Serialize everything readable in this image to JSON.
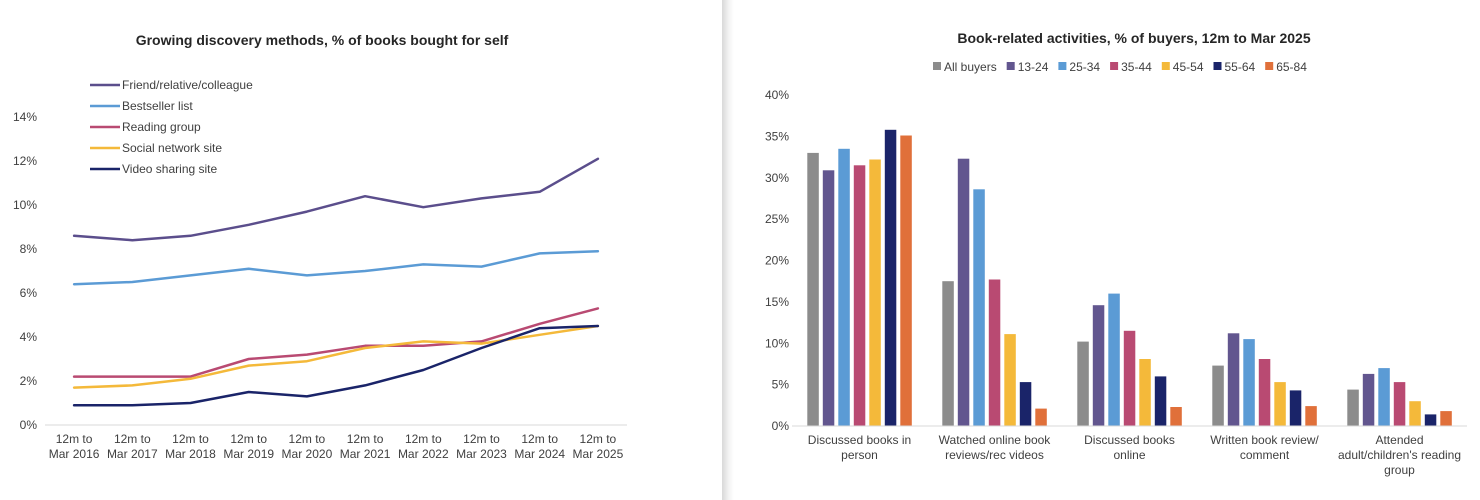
{
  "chart_data": [
    {
      "type": "line",
      "title": "Growing discovery methods, % of books bought for self",
      "xlabel": "",
      "ylabel": "",
      "ylim": [
        0,
        14
      ],
      "yticks": [
        "0%",
        "2%",
        "4%",
        "6%",
        "8%",
        "10%",
        "12%",
        "14%"
      ],
      "legend_position": "top-left",
      "categories": [
        [
          "12m to",
          "Mar 2016"
        ],
        [
          "12m to",
          "Mar 2017"
        ],
        [
          "12m to",
          "Mar 2018"
        ],
        [
          "12m to",
          "Mar 2019"
        ],
        [
          "12m to",
          "Mar 2020"
        ],
        [
          "12m to",
          "Mar 2021"
        ],
        [
          "12m to",
          "Mar 2022"
        ],
        [
          "12m to",
          "Mar 2023"
        ],
        [
          "12m to",
          "Mar 2024"
        ],
        [
          "12m to",
          "Mar 2025"
        ]
      ],
      "series": [
        {
          "name": "Friend/relative/colleague",
          "color": "#5b4e8c",
          "values": [
            8.6,
            8.4,
            8.6,
            9.1,
            9.7,
            10.4,
            9.9,
            10.3,
            10.6,
            12.1
          ]
        },
        {
          "name": "Bestseller list",
          "color": "#5b9bd5",
          "values": [
            6.4,
            6.5,
            6.8,
            7.1,
            6.8,
            7.0,
            7.3,
            7.2,
            7.8,
            7.9
          ]
        },
        {
          "name": "Reading group",
          "color": "#b94a72",
          "values": [
            2.2,
            2.2,
            2.2,
            3.0,
            3.2,
            3.6,
            3.6,
            3.8,
            4.6,
            5.3
          ]
        },
        {
          "name": "Social network site",
          "color": "#f4b93a",
          "values": [
            1.7,
            1.8,
            2.1,
            2.7,
            2.9,
            3.5,
            3.8,
            3.7,
            4.1,
            4.5
          ]
        },
        {
          "name": "Video sharing site",
          "color": "#1a2469",
          "values": [
            0.9,
            0.9,
            1.0,
            1.5,
            1.3,
            1.8,
            2.5,
            3.5,
            4.4,
            4.5
          ]
        }
      ]
    },
    {
      "type": "bar",
      "title": "Book-related activities, % of buyers, 12m to Mar 2025",
      "xlabel": "",
      "ylabel": "",
      "ylim": [
        0,
        40
      ],
      "yticks": [
        "0%",
        "5%",
        "10%",
        "15%",
        "20%",
        "25%",
        "30%",
        "35%",
        "40%"
      ],
      "legend_position": "top",
      "categories": [
        [
          "Discussed books in",
          "person"
        ],
        [
          "Watched online book",
          "reviews/rec videos"
        ],
        [
          "Discussed books",
          "online"
        ],
        [
          "Written book review/",
          "comment"
        ],
        [
          "Attended",
          "adult/children's reading",
          "group"
        ]
      ],
      "series": [
        {
          "name": "All buyers",
          "color": "#8c8c8c",
          "values": [
            33.0,
            17.5,
            10.2,
            7.3,
            4.4
          ]
        },
        {
          "name": "13-24",
          "color": "#62568f",
          "values": [
            30.9,
            32.3,
            14.6,
            11.2,
            6.3
          ]
        },
        {
          "name": "25-34",
          "color": "#5b9bd5",
          "values": [
            33.5,
            28.6,
            16.0,
            10.5,
            7.0
          ]
        },
        {
          "name": "35-44",
          "color": "#b94a72",
          "values": [
            31.5,
            17.7,
            11.5,
            8.1,
            5.3
          ]
        },
        {
          "name": "45-54",
          "color": "#f4b93a",
          "values": [
            32.2,
            11.1,
            8.1,
            5.3,
            3.0
          ]
        },
        {
          "name": "55-64",
          "color": "#1a2469",
          "values": [
            35.8,
            5.3,
            6.0,
            4.3,
            1.4
          ]
        },
        {
          "name": "65-84",
          "color": "#e0703a",
          "values": [
            35.1,
            2.1,
            2.3,
            2.4,
            1.8
          ]
        }
      ]
    }
  ]
}
